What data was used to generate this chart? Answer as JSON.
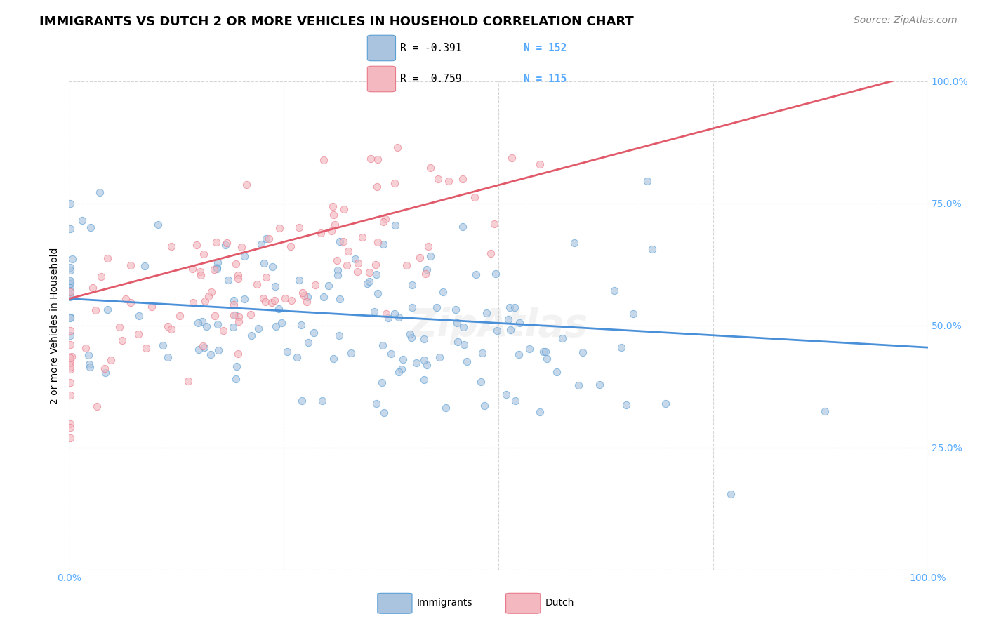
{
  "title": "IMMIGRANTS VS DUTCH 2 OR MORE VEHICLES IN HOUSEHOLD CORRELATION CHART",
  "source": "Source: ZipAtlas.com",
  "ylabel": "2 or more Vehicles in Household",
  "xlim": [
    0,
    1
  ],
  "ylim": [
    0,
    1
  ],
  "xtick_positions": [
    0.0,
    0.25,
    0.5,
    0.75,
    1.0
  ],
  "xticklabels": [
    "0.0%",
    "",
    "",
    "",
    "100.0%"
  ],
  "ytick_positions_right": [
    0.25,
    0.5,
    0.75,
    1.0
  ],
  "ytick_labels_right": [
    "25.0%",
    "50.0%",
    "75.0%",
    "100.0%"
  ],
  "immigrants_R": -0.391,
  "immigrants_N": 152,
  "dutch_R": 0.759,
  "dutch_N": 115,
  "immigrants_color": "#aac4e0",
  "dutch_color": "#f4b8c1",
  "immigrants_edge": "#5a9fd4",
  "dutch_edge": "#e87a8a",
  "line_immigrants_color": "#4a90d9",
  "line_dutch_color": "#e05a6a",
  "watermark": "ZipAtlas",
  "legend_immigrants_label": "Immigrants",
  "legend_dutch_label": "Dutch",
  "background_color": "#ffffff",
  "grid_color": "#cccccc",
  "title_fontsize": 13,
  "axis_fontsize": 10,
  "tick_fontsize": 10,
  "source_fontsize": 10,
  "watermark_fontsize": 40,
  "watermark_alpha": 0.1,
  "scatter_size": 55,
  "scatter_alpha": 0.65,
  "seed": 42,
  "imm_line_y0": 0.555,
  "imm_line_y1": 0.455,
  "dutch_line_y0": 0.555,
  "dutch_line_y1": 1.02
}
